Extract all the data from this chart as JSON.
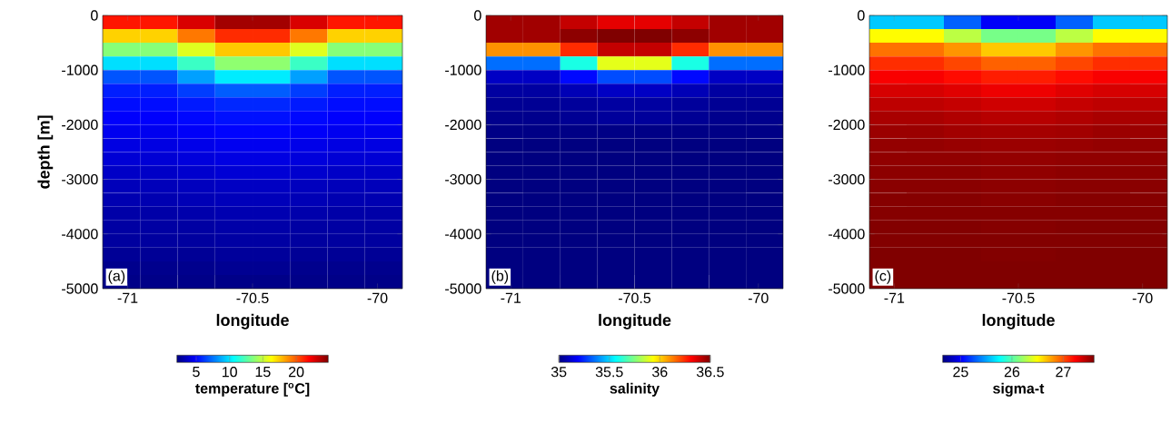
{
  "chart_data": [
    {
      "type": "heatmap",
      "xlabel": "longitude",
      "ylabel": "depth [m]",
      "clabel": "temperature [$^{o}$C]",
      "annotations": [
        "(a)"
      ],
      "x": [
        -71.025,
        -70.875,
        -70.725,
        -70.575,
        -70.425,
        -70.275,
        -70.125,
        -69.975
      ],
      "y": [
        -125,
        -375,
        -625,
        -875,
        -1125,
        -1375,
        -1625,
        -1875,
        -2125,
        -2375,
        -2625,
        -2875,
        -3125,
        -3375,
        -3625,
        -3875,
        -4125,
        -4375,
        -4625,
        -4875
      ],
      "xlim": [
        -71.1,
        -69.9
      ],
      "ylim": [
        -5000,
        0
      ],
      "xticks": [
        -71,
        -70.5,
        -70
      ],
      "yticks": [
        -5000,
        -4000,
        -3000,
        -2000,
        -1000,
        0
      ],
      "clim": [
        2.1,
        24.8
      ],
      "cticks": [
        5,
        10,
        15,
        20
      ],
      "cells": [
        [
          21.5,
          21.5,
          22.8,
          24.0,
          24.0,
          22.8,
          21.5,
          21.5
        ],
        [
          17.3,
          17.3,
          19.3,
          21.0,
          21.0,
          19.3,
          17.3,
          17.3
        ],
        [
          13.6,
          13.6,
          15.6,
          17.5,
          17.5,
          15.6,
          13.6,
          13.6
        ],
        [
          9.9,
          9.9,
          11.9,
          13.8,
          13.8,
          11.9,
          9.9,
          9.9
        ],
        [
          6.8,
          6.8,
          8.5,
          10.2,
          10.2,
          8.5,
          6.8,
          6.8
        ],
        [
          5.6,
          5.6,
          6.3,
          7.0,
          7.0,
          6.3,
          5.6,
          5.6
        ],
        [
          5.2,
          5.2,
          5.5,
          5.8,
          5.8,
          5.5,
          5.2,
          5.2
        ],
        [
          4.9,
          4.9,
          5.1,
          5.3,
          5.3,
          5.1,
          4.9,
          4.9
        ],
        [
          4.6,
          4.6,
          4.8,
          5.0,
          5.0,
          4.8,
          4.6,
          4.6
        ],
        [
          4.3,
          4.3,
          4.45,
          4.6,
          4.6,
          4.45,
          4.3,
          4.3
        ],
        [
          4.0,
          4.0,
          4.15,
          4.3,
          4.3,
          4.15,
          4.0,
          4.0
        ],
        [
          3.7,
          3.7,
          3.85,
          4.0,
          4.0,
          3.85,
          3.7,
          3.7
        ],
        [
          3.4,
          3.4,
          3.5,
          3.6,
          3.6,
          3.5,
          3.4,
          3.4
        ],
        [
          3.2,
          3.2,
          3.3,
          3.4,
          3.4,
          3.3,
          3.2,
          3.2
        ],
        [
          3.0,
          3.0,
          3.1,
          3.2,
          3.2,
          3.1,
          3.0,
          3.0
        ],
        [
          2.9,
          2.9,
          2.9,
          3.0,
          3.0,
          2.9,
          2.9,
          2.9
        ],
        [
          2.8,
          2.8,
          2.8,
          2.9,
          2.9,
          2.8,
          2.8,
          2.8
        ],
        [
          2.6,
          2.6,
          2.6,
          2.7,
          2.7,
          2.6,
          2.6,
          2.6
        ],
        [
          2.4,
          2.4,
          2.4,
          2.5,
          2.5,
          2.4,
          2.4,
          2.4
        ],
        [
          2.3,
          2.3,
          2.3,
          2.3,
          2.3,
          2.3,
          2.3,
          2.3
        ]
      ]
    },
    {
      "type": "heatmap",
      "xlabel": "longitude",
      "clabel": "salinity",
      "annotations": [
        "(b)"
      ],
      "x": [
        -71.025,
        -70.875,
        -70.725,
        -70.575,
        -70.425,
        -70.275,
        -70.125,
        -69.975
      ],
      "y": [
        -125,
        -375,
        -625,
        -875,
        -1125,
        -1375,
        -1625,
        -1875,
        -2125,
        -2375,
        -2625,
        -2875,
        -3125,
        -3375,
        -3625,
        -3875,
        -4125,
        -4375,
        -4625,
        -4875
      ],
      "xlim": [
        -71.1,
        -69.9
      ],
      "ylim": [
        -5000,
        0
      ],
      "xticks": [
        -71,
        -70.5,
        -70
      ],
      "yticks": [
        -5000,
        -4000,
        -3000,
        -2000,
        -1000,
        0
      ],
      "clim": [
        35,
        36.5
      ],
      "cticks": [
        35,
        35.5,
        36,
        36.5
      ],
      "cells": [
        [
          36.45,
          36.45,
          36.4,
          36.35,
          36.35,
          36.4,
          36.45,
          36.45
        ],
        [
          36.45,
          36.45,
          36.48,
          36.5,
          36.5,
          36.48,
          36.45,
          36.45
        ],
        [
          36.1,
          36.1,
          36.25,
          36.4,
          36.4,
          36.25,
          36.1,
          36.1
        ],
        [
          35.35,
          35.35,
          35.6,
          35.9,
          35.9,
          35.6,
          35.35,
          35.35
        ],
        [
          35.1,
          35.1,
          35.2,
          35.3,
          35.3,
          35.2,
          35.1,
          35.1
        ],
        [
          35.05,
          35.05,
          35.08,
          35.1,
          35.1,
          35.08,
          35.05,
          35.05
        ],
        [
          35.03,
          35.03,
          35.04,
          35.05,
          35.05,
          35.04,
          35.03,
          35.03
        ],
        [
          35.02,
          35.02,
          35.03,
          35.04,
          35.04,
          35.03,
          35.02,
          35.02
        ],
        [
          35.01,
          35.01,
          35.01,
          35.01,
          35.01,
          35.01,
          35.01,
          35.01
        ],
        [
          35.0,
          35.0,
          35.0,
          35.0,
          35.0,
          35.0,
          35.0,
          35.0
        ],
        [
          35.0,
          35.0,
          35.0,
          35.0,
          35.0,
          35.0,
          35.0,
          35.0
        ],
        [
          35.0,
          35.0,
          35.0,
          35.0,
          35.0,
          35.0,
          35.0,
          35.0
        ],
        [
          35.0,
          35.0,
          35.0,
          35.0,
          35.0,
          35.0,
          35.0,
          35.0
        ],
        [
          35.0,
          35.0,
          35.0,
          35.0,
          35.0,
          35.0,
          35.0,
          35.0
        ],
        [
          35.0,
          35.0,
          35.0,
          35.0,
          35.0,
          35.0,
          35.0,
          35.0
        ],
        [
          35.0,
          35.0,
          35.0,
          35.0,
          35.0,
          35.0,
          35.0,
          35.0
        ],
        [
          35.0,
          35.0,
          35.0,
          35.0,
          35.0,
          35.0,
          35.0,
          35.0
        ],
        [
          35.0,
          35.0,
          35.0,
          35.0,
          35.0,
          35.0,
          35.0,
          35.0
        ],
        [
          35.0,
          35.0,
          35.0,
          35.0,
          35.0,
          35.0,
          35.0,
          35.0
        ],
        [
          35.0,
          35.0,
          35.0,
          35.0,
          35.0,
          35.0,
          35.0,
          35.0
        ]
      ]
    },
    {
      "type": "heatmap",
      "xlabel": "longitude",
      "clabel": "sigma-t",
      "annotations": [
        "(c)"
      ],
      "x": [
        -71.025,
        -70.875,
        -70.725,
        -70.575,
        -70.425,
        -70.275,
        -70.125,
        -69.975
      ],
      "y": [
        -125,
        -375,
        -625,
        -875,
        -1125,
        -1375,
        -1625,
        -1875,
        -2125,
        -2375,
        -2625,
        -2875,
        -3125,
        -3375,
        -3625,
        -3875,
        -4125,
        -4375,
        -4625,
        -4875
      ],
      "xlim": [
        -71.1,
        -69.9
      ],
      "ylim": [
        -5000,
        0
      ],
      "xticks": [
        -71,
        -70.5,
        -70
      ],
      "yticks": [
        -5000,
        -4000,
        -3000,
        -2000,
        -1000,
        0
      ],
      "clim": [
        24.65,
        27.6
      ],
      "cticks": [
        25,
        26,
        27
      ],
      "cells": [
        [
          25.6,
          25.6,
          25.3,
          25.0,
          25.0,
          25.3,
          25.6,
          25.6
        ],
        [
          26.5,
          26.5,
          26.3,
          26.1,
          26.1,
          26.3,
          26.5,
          26.5
        ],
        [
          26.9,
          26.9,
          26.8,
          26.65,
          26.65,
          26.8,
          26.9,
          26.9
        ],
        [
          27.1,
          27.1,
          27.03,
          26.95,
          26.95,
          27.03,
          27.1,
          27.1
        ],
        [
          27.25,
          27.25,
          27.2,
          27.15,
          27.15,
          27.2,
          27.25,
          27.25
        ],
        [
          27.35,
          27.35,
          27.32,
          27.28,
          27.28,
          27.32,
          27.35,
          27.35
        ],
        [
          27.42,
          27.42,
          27.4,
          27.37,
          27.37,
          27.4,
          27.42,
          27.42
        ],
        [
          27.48,
          27.48,
          27.46,
          27.44,
          27.44,
          27.46,
          27.48,
          27.48
        ],
        [
          27.52,
          27.52,
          27.5,
          27.49,
          27.49,
          27.5,
          27.52,
          27.52
        ],
        [
          27.54,
          27.54,
          27.53,
          27.52,
          27.52,
          27.53,
          27.54,
          27.54
        ],
        [
          27.55,
          27.55,
          27.55,
          27.54,
          27.54,
          27.55,
          27.55,
          27.55
        ],
        [
          27.56,
          27.56,
          27.56,
          27.55,
          27.55,
          27.56,
          27.56,
          27.56
        ],
        [
          27.57,
          27.57,
          27.57,
          27.56,
          27.56,
          27.57,
          27.57,
          27.57
        ],
        [
          27.58,
          27.58,
          27.58,
          27.57,
          27.57,
          27.58,
          27.58,
          27.58
        ],
        [
          27.58,
          27.58,
          27.58,
          27.58,
          27.58,
          27.58,
          27.58,
          27.58
        ],
        [
          27.59,
          27.59,
          27.59,
          27.58,
          27.58,
          27.59,
          27.59,
          27.59
        ],
        [
          27.59,
          27.59,
          27.59,
          27.59,
          27.59,
          27.59,
          27.59,
          27.59
        ],
        [
          27.6,
          27.6,
          27.6,
          27.59,
          27.59,
          27.6,
          27.6,
          27.6
        ],
        [
          27.6,
          27.6,
          27.6,
          27.6,
          27.6,
          27.6,
          27.6,
          27.6
        ],
        [
          27.6,
          27.6,
          27.6,
          27.6,
          27.6,
          27.6,
          27.6,
          27.6
        ]
      ]
    }
  ]
}
